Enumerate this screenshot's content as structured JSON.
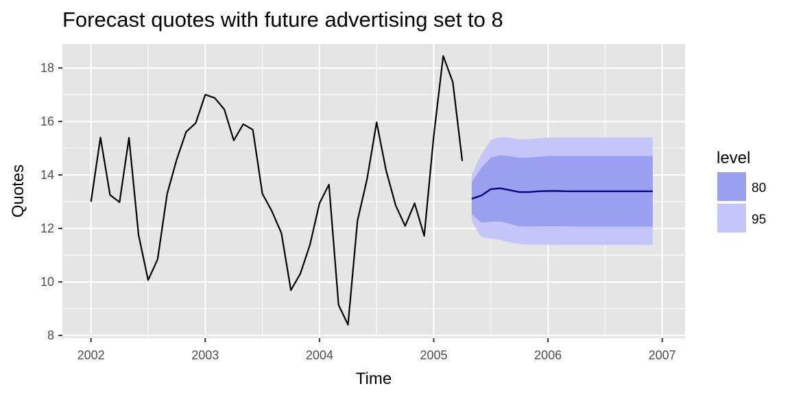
{
  "chart_data": {
    "type": "line",
    "title": "Forecast quotes with future advertising set to 8",
    "xlabel": "Time",
    "ylabel": "Quotes",
    "xlim": [
      2001.75,
      2007.2
    ],
    "ylim": [
      7.9,
      18.9
    ],
    "x_ticks": [
      2002,
      2003,
      2004,
      2005,
      2006,
      2007
    ],
    "x_tick_labels": [
      "2002",
      "2003",
      "2004",
      "2005",
      "2006",
      "2007"
    ],
    "y_ticks": [
      8,
      10,
      12,
      14,
      16,
      18
    ],
    "y_tick_labels": [
      "8",
      "10",
      "12",
      "14",
      "16",
      "18"
    ],
    "grid": true,
    "legend": {
      "title": "level",
      "position": "right",
      "entries": [
        {
          "label": "80",
          "color": "#9b9ff0"
        },
        {
          "label": "95",
          "color": "#c4c6fb"
        }
      ]
    },
    "colors": {
      "panel": "#e5e5e5",
      "grid": "#ffffff",
      "observed": "#000000",
      "forecast": "#00008b",
      "band80": "#9b9ff0",
      "band95": "#c4c6fb"
    },
    "series": [
      {
        "role": "observed",
        "x": [
          2002.0,
          2002.083,
          2002.167,
          2002.25,
          2002.333,
          2002.417,
          2002.5,
          2002.583,
          2002.667,
          2002.75,
          2002.833,
          2002.917,
          2003.0,
          2003.083,
          2003.167,
          2003.25,
          2003.333,
          2003.417,
          2003.5,
          2003.583,
          2003.667,
          2003.75,
          2003.833,
          2003.917,
          2004.0,
          2004.083,
          2004.167,
          2004.25,
          2004.333,
          2004.417,
          2004.5,
          2004.583,
          2004.667,
          2004.75,
          2004.833,
          2004.917,
          2005.0,
          2005.083,
          2005.167,
          2005.25
        ],
        "values": [
          13.0,
          15.4,
          13.25,
          12.98,
          15.39,
          11.75,
          10.07,
          10.84,
          13.3,
          14.57,
          15.61,
          15.94,
          17.0,
          16.88,
          16.45,
          15.29,
          15.9,
          15.69,
          13.3,
          12.65,
          11.82,
          9.69,
          10.31,
          11.39,
          12.94,
          13.64,
          9.14,
          8.4,
          12.29,
          13.85,
          15.97,
          14.17,
          12.86,
          12.09,
          12.94,
          11.72,
          15.46,
          18.45,
          17.47,
          14.52
        ]
      },
      {
        "role": "forecast",
        "x": [
          2005.333,
          2005.417,
          2005.5,
          2005.583,
          2005.667,
          2005.75,
          2005.833,
          2005.917,
          2006.0,
          2006.083,
          2006.167,
          2006.25,
          2006.333,
          2006.417,
          2006.5,
          2006.583,
          2006.667,
          2006.75,
          2006.833,
          2006.917
        ],
        "values": [
          13.11,
          13.23,
          13.47,
          13.5,
          13.43,
          13.36,
          13.36,
          13.39,
          13.4,
          13.4,
          13.39,
          13.39,
          13.39,
          13.39,
          13.39,
          13.39,
          13.39,
          13.39,
          13.39,
          13.39
        ],
        "lower80": [
          12.53,
          12.22,
          12.25,
          12.26,
          12.17,
          12.08,
          12.07,
          12.08,
          12.08,
          12.08,
          12.08,
          12.07,
          12.07,
          12.07,
          12.07,
          12.07,
          12.07,
          12.07,
          12.07,
          12.07
        ],
        "upper80": [
          13.73,
          14.26,
          14.65,
          14.74,
          14.7,
          14.64,
          14.65,
          14.68,
          14.71,
          14.71,
          14.71,
          14.71,
          14.71,
          14.71,
          14.71,
          14.71,
          14.71,
          14.71,
          14.71,
          14.71
        ],
        "lower95": [
          12.27,
          11.67,
          11.62,
          11.57,
          11.48,
          11.41,
          11.4,
          11.39,
          11.39,
          11.38,
          11.38,
          11.38,
          11.38,
          11.38,
          11.38,
          11.38,
          11.38,
          11.38,
          11.38,
          11.38
        ],
        "upper95": [
          14.01,
          14.77,
          15.31,
          15.42,
          15.39,
          15.33,
          15.34,
          15.37,
          15.4,
          15.4,
          15.4,
          15.4,
          15.4,
          15.4,
          15.4,
          15.4,
          15.4,
          15.4,
          15.4,
          15.4
        ]
      }
    ]
  }
}
